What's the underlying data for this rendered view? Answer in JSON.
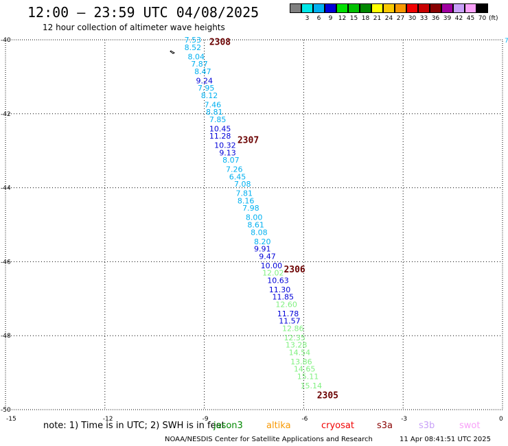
{
  "header": {
    "title": "12:00 – 23:59 UTC 04/08/2025",
    "subtitle": "12 hour collection of altimeter wave heights"
  },
  "legend": {
    "unit": "(ft)",
    "bins": [
      {
        "label": "",
        "color": "#808080"
      },
      {
        "label": "3",
        "color": "#00e8e8"
      },
      {
        "label": "6",
        "color": "#00b0f0"
      },
      {
        "label": "9",
        "color": "#0000d8"
      },
      {
        "label": "12",
        "color": "#00e000"
      },
      {
        "label": "15",
        "color": "#00c000"
      },
      {
        "label": "18",
        "color": "#008800"
      },
      {
        "label": "21",
        "color": "#ffff00"
      },
      {
        "label": "24",
        "color": "#f8c800"
      },
      {
        "label": "27",
        "color": "#f89800"
      },
      {
        "label": "30",
        "color": "#f00000"
      },
      {
        "label": "33",
        "color": "#c80000"
      },
      {
        "label": "36",
        "color": "#880000"
      },
      {
        "label": "39",
        "color": "#a000a0"
      },
      {
        "label": "42",
        "color": "#c8a0f8"
      },
      {
        "label": "45",
        "color": "#f8a0f8"
      },
      {
        "label": "70",
        "color": "#000000"
      }
    ]
  },
  "map": {
    "x_axis": {
      "range": [
        -15,
        0
      ],
      "ticks": [
        "-15",
        "-12",
        "-9",
        "-6",
        "-3",
        "0"
      ]
    },
    "y_axis": {
      "range": [
        -50,
        -40
      ],
      "ticks": [
        "-40",
        "-42",
        "-44",
        "-46",
        "-48",
        "-50"
      ]
    },
    "right_edge_label": "7",
    "colors": {
      "low": "#00b0f0",
      "mid": "#0000d8",
      "high": "#80f080"
    },
    "hour_labels": [
      {
        "text": "2308",
        "lon": -8.85,
        "lat": -40.05
      },
      {
        "text": "2307",
        "lon": -8.0,
        "lat": -42.7
      },
      {
        "text": "2306",
        "lon": -6.6,
        "lat": -46.2
      },
      {
        "text": "2305",
        "lon": -5.6,
        "lat": -49.6
      }
    ],
    "observations": [
      {
        "v": "7.53",
        "lon": -9.6,
        "lat": -40.0,
        "c": "low"
      },
      {
        "v": "8.52",
        "lon": -9.6,
        "lat": -40.2,
        "c": "low"
      },
      {
        "v": "8.04",
        "lon": -9.5,
        "lat": -40.45,
        "c": "low"
      },
      {
        "v": "7.87",
        "lon": -9.4,
        "lat": -40.65,
        "c": "low"
      },
      {
        "v": "8.47",
        "lon": -9.3,
        "lat": -40.85,
        "c": "low"
      },
      {
        "v": "9.24",
        "lon": -9.25,
        "lat": -41.1,
        "c": "mid"
      },
      {
        "v": "7.95",
        "lon": -9.2,
        "lat": -41.3,
        "c": "low"
      },
      {
        "v": "8.12",
        "lon": -9.1,
        "lat": -41.5,
        "c": "low"
      },
      {
        "v": "7.46",
        "lon": -9.0,
        "lat": -41.75,
        "c": "low"
      },
      {
        "v": "8.81",
        "lon": -8.95,
        "lat": -41.95,
        "c": "low"
      },
      {
        "v": "7.85",
        "lon": -8.85,
        "lat": -42.15,
        "c": "low"
      },
      {
        "v": "10.45",
        "lon": -8.85,
        "lat": -42.4,
        "c": "mid"
      },
      {
        "v": "11.28",
        "lon": -8.85,
        "lat": -42.6,
        "c": "mid"
      },
      {
        "v": "10.32",
        "lon": -8.7,
        "lat": -42.85,
        "c": "mid"
      },
      {
        "v": "9.13",
        "lon": -8.55,
        "lat": -43.05,
        "c": "mid"
      },
      {
        "v": "8.07",
        "lon": -8.45,
        "lat": -43.25,
        "c": "low"
      },
      {
        "v": "7.26",
        "lon": -8.35,
        "lat": -43.5,
        "c": "low"
      },
      {
        "v": "6.45",
        "lon": -8.25,
        "lat": -43.7,
        "c": "low"
      },
      {
        "v": "7.08",
        "lon": -8.1,
        "lat": -43.9,
        "c": "low"
      },
      {
        "v": "7.81",
        "lon": -8.05,
        "lat": -44.15,
        "c": "low"
      },
      {
        "v": "8.16",
        "lon": -8.0,
        "lat": -44.35,
        "c": "low"
      },
      {
        "v": "7.98",
        "lon": -7.85,
        "lat": -44.55,
        "c": "low"
      },
      {
        "v": "8.00",
        "lon": -7.75,
        "lat": -44.8,
        "c": "low"
      },
      {
        "v": "8.61",
        "lon": -7.7,
        "lat": -45.0,
        "c": "low"
      },
      {
        "v": "8.08",
        "lon": -7.6,
        "lat": -45.2,
        "c": "low"
      },
      {
        "v": "8.20",
        "lon": -7.5,
        "lat": -45.45,
        "c": "low"
      },
      {
        "v": "9.91",
        "lon": -7.5,
        "lat": -45.65,
        "c": "mid"
      },
      {
        "v": "9.47",
        "lon": -7.35,
        "lat": -45.85,
        "c": "mid"
      },
      {
        "v": "10.00",
        "lon": -7.3,
        "lat": -46.1,
        "c": "mid"
      },
      {
        "v": "12.02",
        "lon": -7.25,
        "lat": -46.3,
        "c": "high"
      },
      {
        "v": "10.63",
        "lon": -7.1,
        "lat": -46.5,
        "c": "mid"
      },
      {
        "v": "11.30",
        "lon": -7.05,
        "lat": -46.75,
        "c": "mid"
      },
      {
        "v": "11.85",
        "lon": -6.95,
        "lat": -46.95,
        "c": "mid"
      },
      {
        "v": "12.60",
        "lon": -6.85,
        "lat": -47.15,
        "c": "high"
      },
      {
        "v": "11.78",
        "lon": -6.8,
        "lat": -47.4,
        "c": "mid"
      },
      {
        "v": "11.57",
        "lon": -6.75,
        "lat": -47.6,
        "c": "mid"
      },
      {
        "v": "12.86",
        "lon": -6.65,
        "lat": -47.8,
        "c": "high"
      },
      {
        "v": "12.35",
        "lon": -6.6,
        "lat": -48.05,
        "c": "high"
      },
      {
        "v": "13.28",
        "lon": -6.55,
        "lat": -48.25,
        "c": "high"
      },
      {
        "v": "14.54",
        "lon": -6.45,
        "lat": -48.45,
        "c": "high"
      },
      {
        "v": "13.86",
        "lon": -6.4,
        "lat": -48.7,
        "c": "high"
      },
      {
        "v": "14.65",
        "lon": -6.3,
        "lat": -48.9,
        "c": "high"
      },
      {
        "v": "15.11",
        "lon": -6.2,
        "lat": -49.1,
        "c": "high"
      },
      {
        "v": "15.14",
        "lon": -6.1,
        "lat": -49.35,
        "c": "high"
      }
    ]
  },
  "footer": {
    "note": "note: 1) Time is in UTC; 2) SWH is in feet",
    "satellites": [
      {
        "name": "jason3",
        "color": "#008800"
      },
      {
        "name": "altika",
        "color": "#f89800"
      },
      {
        "name": "cryosat",
        "color": "#f00000"
      },
      {
        "name": "s3a",
        "color": "#880000"
      },
      {
        "name": "s3b",
        "color": "#c8a0f8"
      },
      {
        "name": "swot",
        "color": "#f8a0f8"
      }
    ],
    "credit": "NOAA/NESDIS Center for Satellite Applications and Research",
    "timestamp": "11 Apr 08:41:51 UTC 2025"
  }
}
